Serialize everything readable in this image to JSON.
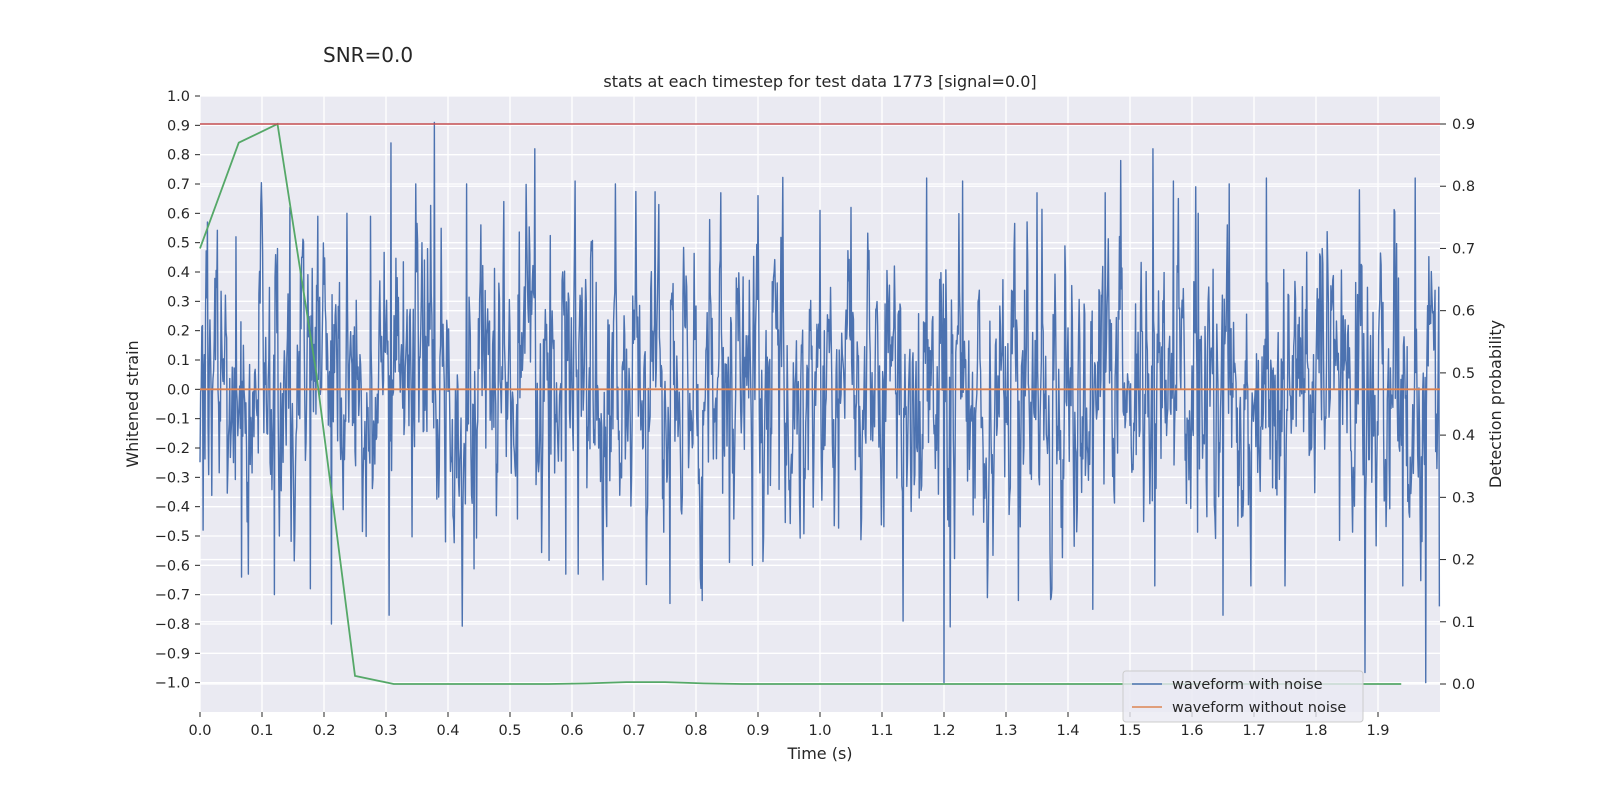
{
  "chart_data": {
    "type": "line",
    "suptitle": "SNR=0.0",
    "title": "stats at each timestep for test data 1773 [signal=0.0]",
    "xlabel": "Time (s)",
    "ylabel": "Whitened strain",
    "y2label": "Detection probability",
    "xlim": [
      0.0,
      2.0
    ],
    "ylim": [
      -1.1,
      1.0
    ],
    "y2lim": [
      -0.045,
      0.945
    ],
    "x_ticks": [
      "0.0",
      "0.1",
      "0.2",
      "0.3",
      "0.4",
      "0.5",
      "0.6",
      "0.7",
      "0.8",
      "0.9",
      "1.0",
      "1.1",
      "1.2",
      "1.3",
      "1.4",
      "1.5",
      "1.6",
      "1.7",
      "1.8",
      "1.9"
    ],
    "y_ticks": [
      "1.0",
      "0.9",
      "0.8",
      "0.7",
      "0.6",
      "0.5",
      "0.4",
      "0.3",
      "0.2",
      "0.1",
      "0.0",
      "−0.1",
      "−0.2",
      "−0.3",
      "−0.4",
      "−0.5",
      "−0.6",
      "−0.7",
      "−0.8",
      "−0.9",
      "−1.0"
    ],
    "y2_ticks": [
      "0.9",
      "0.8",
      "0.7",
      "0.6",
      "0.5",
      "0.4",
      "0.3",
      "0.2",
      "0.1",
      "0.0"
    ],
    "grid": true,
    "legend_position": "lower-right",
    "colors": {
      "background": "#eaeaf2",
      "grid": "#ffffff",
      "noisy": "#4c72b0",
      "clean": "#dd8452",
      "probability": "#55a868",
      "threshold": "#c44e52"
    },
    "series": [
      {
        "name": "waveform with noise",
        "axis": "left",
        "sample_count": 2000,
        "x_range": [
          0.0,
          1.999
        ],
        "value_range": [
          -1.0,
          0.91
        ],
        "peaks": [
          {
            "x": 0.012,
            "y": 0.57
          },
          {
            "x": 0.058,
            "y": 0.52
          },
          {
            "x": 0.125,
            "y": 0.48
          },
          {
            "x": 0.145,
            "y": 0.62
          },
          {
            "x": 0.19,
            "y": 0.59
          },
          {
            "x": 0.237,
            "y": 0.6
          },
          {
            "x": 0.275,
            "y": 0.59
          },
          {
            "x": 0.308,
            "y": 0.84
          },
          {
            "x": 0.348,
            "y": 0.7
          },
          {
            "x": 0.378,
            "y": 0.91
          },
          {
            "x": 0.43,
            "y": 0.7
          },
          {
            "x": 0.49,
            "y": 0.64
          },
          {
            "x": 0.54,
            "y": 0.82
          },
          {
            "x": 0.605,
            "y": 0.71
          },
          {
            "x": 0.67,
            "y": 0.7
          },
          {
            "x": 0.74,
            "y": 0.63
          },
          {
            "x": 0.84,
            "y": 0.67
          },
          {
            "x": 0.9,
            "y": 0.66
          },
          {
            "x": 1.0,
            "y": 0.61
          },
          {
            "x": 1.05,
            "y": 0.62
          },
          {
            "x": 1.172,
            "y": 0.72
          },
          {
            "x": 1.23,
            "y": 0.71
          },
          {
            "x": 1.35,
            "y": 0.67
          },
          {
            "x": 1.46,
            "y": 0.67
          },
          {
            "x": 1.485,
            "y": 0.78
          },
          {
            "x": 1.537,
            "y": 0.82
          },
          {
            "x": 1.57,
            "y": 0.71
          },
          {
            "x": 1.61,
            "y": 0.6
          },
          {
            "x": 1.66,
            "y": 0.7
          },
          {
            "x": 1.72,
            "y": 0.72
          },
          {
            "x": 1.87,
            "y": 0.68
          },
          {
            "x": 1.96,
            "y": 0.72
          }
        ],
        "troughs": [
          {
            "x": 0.005,
            "y": -0.48
          },
          {
            "x": 0.067,
            "y": -0.64
          },
          {
            "x": 0.078,
            "y": -0.63
          },
          {
            "x": 0.12,
            "y": -0.7
          },
          {
            "x": 0.178,
            "y": -0.68
          },
          {
            "x": 0.212,
            "y": -0.8
          },
          {
            "x": 0.305,
            "y": -0.77
          },
          {
            "x": 0.59,
            "y": -0.63
          },
          {
            "x": 0.61,
            "y": -0.63
          },
          {
            "x": 0.758,
            "y": -0.73
          },
          {
            "x": 0.81,
            "y": -0.72
          },
          {
            "x": 0.854,
            "y": -0.59
          },
          {
            "x": 0.891,
            "y": -0.6
          },
          {
            "x": 1.134,
            "y": -0.79
          },
          {
            "x": 1.2,
            "y": -1.0
          },
          {
            "x": 1.21,
            "y": -0.81
          },
          {
            "x": 1.32,
            "y": -0.72
          },
          {
            "x": 1.44,
            "y": -0.75
          },
          {
            "x": 1.54,
            "y": -0.67
          },
          {
            "x": 1.65,
            "y": -0.77
          },
          {
            "x": 1.695,
            "y": -0.67
          },
          {
            "x": 1.75,
            "y": -0.67
          },
          {
            "x": 1.94,
            "y": -0.67
          },
          {
            "x": 1.977,
            "y": -1.0
          },
          {
            "x": 1.999,
            "y": -0.74
          }
        ]
      },
      {
        "name": "waveform without noise",
        "axis": "left",
        "x": [
          0.0,
          2.0
        ],
        "y": [
          0.0,
          0.0
        ]
      },
      {
        "axis": "right",
        "x": [
          0.0,
          0.0625,
          0.125,
          0.1875,
          0.25,
          0.3125,
          0.375,
          0.4375,
          0.5,
          0.5625,
          0.625,
          0.6875,
          0.75,
          0.8125,
          0.875,
          0.9375,
          1.0,
          1.0625,
          1.125,
          1.1875,
          1.25,
          1.3125,
          1.375,
          1.4375,
          1.5,
          1.5625,
          1.625,
          1.6875,
          1.75,
          1.8125,
          1.875,
          1.9375
        ],
        "y": [
          0.7,
          0.87,
          0.9,
          0.5,
          0.013,
          0.0,
          0.0,
          0.0,
          0.0,
          0.0,
          0.001,
          0.003,
          0.003,
          0.001,
          0.0,
          0.0,
          0.0,
          0.0,
          0.0,
          0.0,
          0.0,
          0.0,
          0.0,
          0.0,
          0.0,
          0.0,
          0.0,
          0.0,
          0.0,
          0.0,
          0.0,
          0.0
        ]
      },
      {
        "axis": "right",
        "x": [
          0.0,
          2.0
        ],
        "y": [
          0.9,
          0.9
        ]
      }
    ]
  }
}
